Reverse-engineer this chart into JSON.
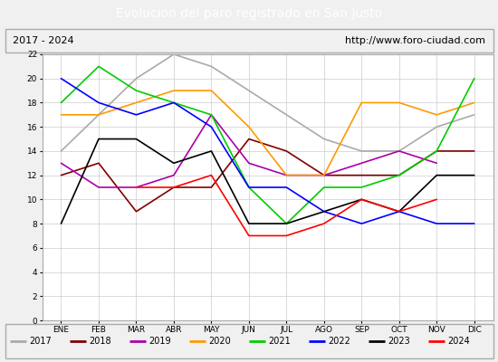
{
  "title": "Evolucion del paro registrado en San Justo",
  "subtitle_left": "2017 - 2024",
  "subtitle_right": "http://www.foro-ciudad.com",
  "months": [
    "ENE",
    "FEB",
    "MAR",
    "ABR",
    "MAY",
    "JUN",
    "JUL",
    "AGO",
    "SEP",
    "OCT",
    "NOV",
    "DIC"
  ],
  "ylim": [
    0,
    22
  ],
  "yticks": [
    0,
    2,
    4,
    6,
    8,
    10,
    12,
    14,
    16,
    18,
    20,
    22
  ],
  "series": {
    "2017": {
      "color": "#aaaaaa",
      "data": [
        14,
        17,
        20,
        22,
        21,
        19,
        17,
        15,
        14,
        14,
        16,
        17
      ]
    },
    "2018": {
      "color": "#800000",
      "data": [
        12,
        13,
        9,
        11,
        11,
        15,
        14,
        12,
        12,
        12,
        14,
        14
      ]
    },
    "2019": {
      "color": "#aa00aa",
      "data": [
        13,
        11,
        11,
        12,
        17,
        13,
        12,
        12,
        13,
        14,
        13,
        null
      ]
    },
    "2020": {
      "color": "#ff9900",
      "data": [
        17,
        17,
        18,
        19,
        19,
        16,
        12,
        12,
        18,
        18,
        17,
        18
      ]
    },
    "2021": {
      "color": "#00cc00",
      "data": [
        18,
        21,
        19,
        18,
        17,
        11,
        8,
        11,
        11,
        12,
        14,
        20
      ]
    },
    "2022": {
      "color": "#0000ff",
      "data": [
        20,
        18,
        17,
        18,
        16,
        11,
        11,
        9,
        8,
        9,
        8,
        8
      ]
    },
    "2023": {
      "color": "#000000",
      "data": [
        8,
        15,
        15,
        13,
        14,
        8,
        8,
        9,
        10,
        9,
        12,
        12
      ]
    },
    "2024": {
      "color": "#ff0000",
      "data": [
        12,
        null,
        11,
        11,
        12,
        7,
        7,
        8,
        10,
        9,
        10,
        null
      ]
    }
  },
  "background_color": "#f0f0f0",
  "plot_bg": "#ffffff",
  "title_bg": "#4472c4",
  "title_color": "#ffffff",
  "grid_color": "#cccccc",
  "legend_bg": "#f0f0f0",
  "border_color": "#aaaaaa"
}
